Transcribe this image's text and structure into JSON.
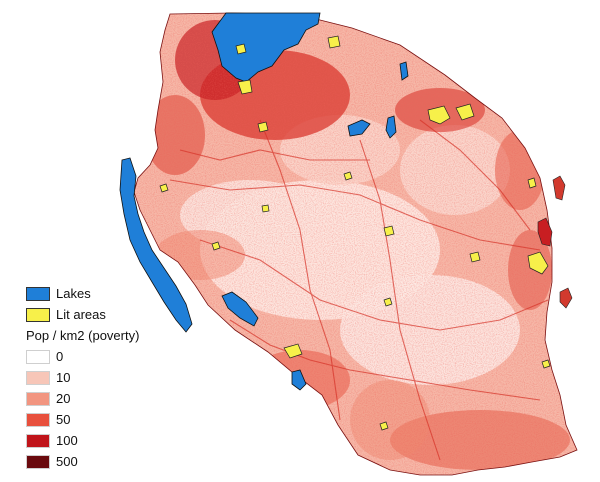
{
  "legend": {
    "lakes_label": "Lakes",
    "lakes_color": "#1f7fd8",
    "lit_label": "Lit areas",
    "lit_color": "#f7f04a",
    "density_title": "Pop / km2 (poverty)",
    "classes": [
      {
        "label": "0",
        "color": "#ffffff"
      },
      {
        "label": "10",
        "color": "#f7c6b8"
      },
      {
        "label": "20",
        "color": "#f29580"
      },
      {
        "label": "50",
        "color": "#e8503d"
      },
      {
        "label": "100",
        "color": "#c0141a"
      },
      {
        "label": "500",
        "color": "#6a0a0e"
      }
    ]
  }
}
